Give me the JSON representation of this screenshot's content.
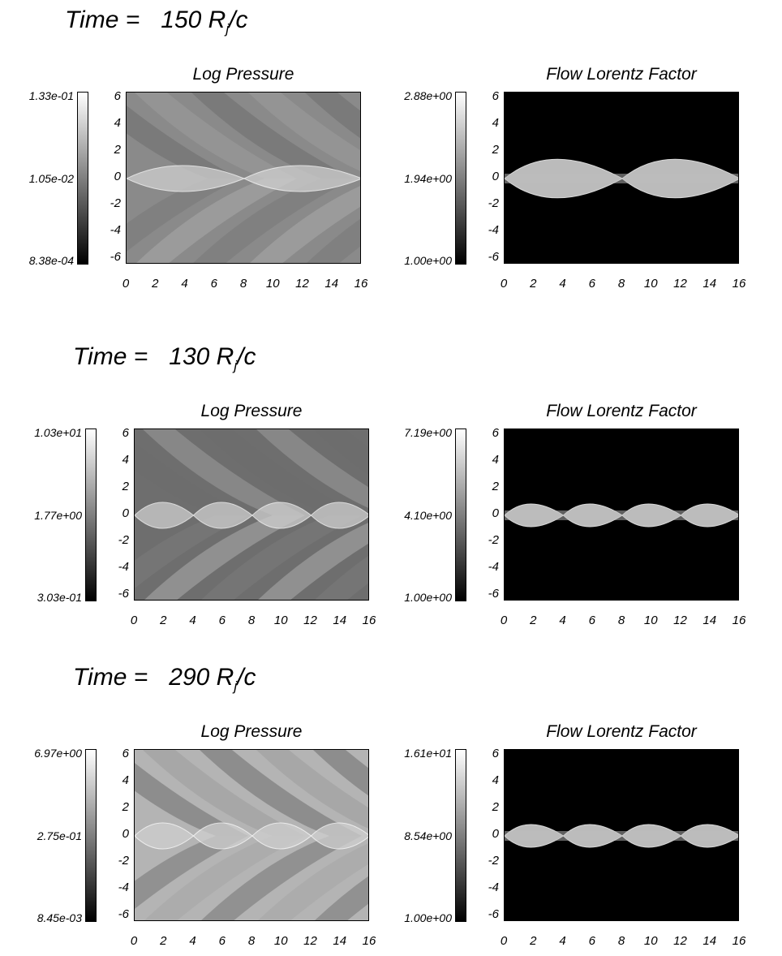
{
  "rows": [
    {
      "time_prefix": "Time =",
      "time_value": "150 R",
      "time_sub": "j",
      "time_suffix": "/c",
      "panels": [
        {
          "title": "Log Pressure",
          "cbar_top": "1.33e-01",
          "cbar_mid": "1.05e-02",
          "cbar_bot": "8.38e-04",
          "field": "pressure",
          "base": "#8a8a8a"
        },
        {
          "title": "Flow Lorentz Factor",
          "cbar_top": "2.88e+00",
          "cbar_mid": "1.94e+00",
          "cbar_bot": "1.00e+00",
          "field": "lorentz",
          "base": "#000000"
        }
      ]
    },
    {
      "time_prefix": "Time =",
      "time_value": "130 R",
      "time_sub": "j",
      "time_suffix": "/c",
      "panels": [
        {
          "title": "Log Pressure",
          "cbar_top": "1.03e+01",
          "cbar_mid": "1.77e+00",
          "cbar_bot": "3.03e-01",
          "field": "pressure",
          "base": "#6e6e6e"
        },
        {
          "title": "Flow Lorentz Factor",
          "cbar_top": "7.19e+00",
          "cbar_mid": "4.10e+00",
          "cbar_bot": "1.00e+00",
          "field": "lorentz",
          "base": "#000000"
        }
      ]
    },
    {
      "time_prefix": "Time =",
      "time_value": "290 R",
      "time_sub": "j",
      "time_suffix": "/c",
      "panels": [
        {
          "title": "Log Pressure",
          "cbar_top": "6.97e+00",
          "cbar_mid": "2.75e-01",
          "cbar_bot": "8.45e-03",
          "field": "pressure",
          "base": "#b4b4b4"
        },
        {
          "title": "Flow Lorentz Factor",
          "cbar_top": "1.61e+01",
          "cbar_mid": "8.54e+00",
          "cbar_bot": "1.00e+00",
          "field": "lorentz",
          "base": "#000000"
        }
      ]
    }
  ],
  "chart_data": {
    "type": "heatmap",
    "x_ticks": [
      "0",
      "2",
      "4",
      "6",
      "8",
      "10",
      "12",
      "14",
      "16"
    ],
    "y_ticks": [
      "6",
      "4",
      "2",
      "0",
      "-2",
      "-4",
      "-6"
    ],
    "xlim": [
      0,
      16
    ],
    "ylim": [
      -6,
      6
    ],
    "colormap": "grayscale"
  }
}
